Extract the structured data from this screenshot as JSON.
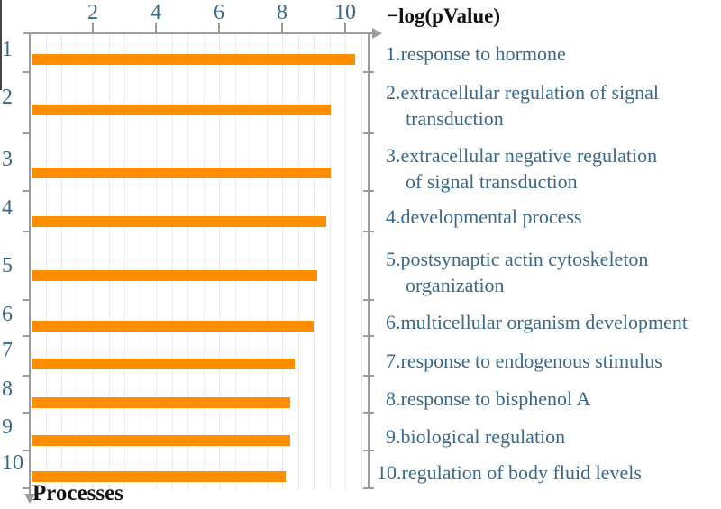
{
  "chart_data": {
    "type": "bar",
    "orientation": "horizontal",
    "title": "",
    "xlabel": "−log(pValue)",
    "ylabel": "Processes",
    "x_ticks": [
      2,
      4,
      6,
      8,
      10
    ],
    "xlim": [
      0,
      10.8
    ],
    "minor_gridline_step": 0.5,
    "grid": true,
    "legend_position": "right",
    "bar_color": "#ff8d00",
    "axis_color": "#9c9c9c",
    "label_text_color": "#39688a",
    "categories": [
      "1",
      "2",
      "3",
      "4",
      "5",
      "6",
      "7",
      "8",
      "9",
      "10"
    ],
    "values": [
      10.3,
      9.55,
      9.55,
      9.4,
      9.1,
      9.0,
      8.4,
      8.25,
      8.25,
      8.1
    ],
    "process_labels": [
      [
        "1.response to hormone"
      ],
      [
        "2.extracellular regulation of signal",
        "transduction"
      ],
      [
        "3.extracellular negative regulation",
        "of signal transduction"
      ],
      [
        "4.developmental process"
      ],
      [
        "5.postsynaptic actin cytoskeleton",
        "organization"
      ],
      [
        "6.multicellular organism development"
      ],
      [
        "7.response to endogenous stimulus"
      ],
      [
        "8.response to bisphenol A"
      ],
      [
        "9.biological regulation"
      ],
      [
        "10.regulation of body fluid levels"
      ]
    ]
  }
}
